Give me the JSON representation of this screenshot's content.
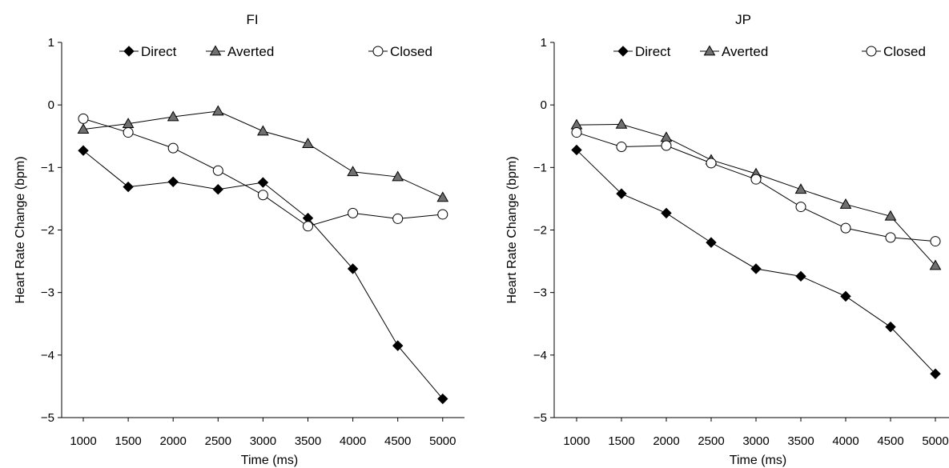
{
  "chart_data": [
    {
      "type": "line",
      "title": "FI",
      "xlabel": "Time (ms)",
      "ylabel": "Heart Rate Change (bpm)",
      "x": [
        1000,
        1500,
        2000,
        2500,
        3000,
        3500,
        4000,
        4500,
        5000
      ],
      "x_tick_labels": [
        "1000",
        "1500",
        "2000",
        "2500",
        "3000",
        "3500",
        "4000",
        "4500",
        "5000"
      ],
      "ylim": [
        -5,
        1
      ],
      "y_ticks": [
        1,
        0,
        -1,
        -2,
        -3,
        -4,
        -5
      ],
      "y_tick_labels": [
        "1",
        "0",
        "−1",
        "−2",
        "−3",
        "−4",
        "−5"
      ],
      "grid": false,
      "legend_position": "top",
      "series": [
        {
          "name": "Direct",
          "marker": "diamond",
          "fill": "#000000",
          "values": [
            -0.73,
            -1.31,
            -1.23,
            -1.35,
            -1.24,
            -1.81,
            -2.62,
            -3.85,
            -4.7
          ]
        },
        {
          "name": "Averted",
          "marker": "triangle",
          "fill": "#707070",
          "values": [
            -0.39,
            -0.3,
            -0.19,
            -0.1,
            -0.42,
            -0.62,
            -1.07,
            -1.15,
            -1.48
          ]
        },
        {
          "name": "Closed",
          "marker": "circle",
          "fill": "#ffffff",
          "values": [
            -0.22,
            -0.44,
            -0.69,
            -1.05,
            -1.44,
            -1.94,
            -1.73,
            -1.82,
            -1.75
          ]
        }
      ]
    },
    {
      "type": "line",
      "title": "JP",
      "xlabel": "Time (ms)",
      "ylabel": "Heart Rate Change (bpm)",
      "x": [
        1000,
        1500,
        2000,
        2500,
        3000,
        3500,
        4000,
        4500,
        5000
      ],
      "x_tick_labels": [
        "1000",
        "1500",
        "2000",
        "2500",
        "3000",
        "3500",
        "4000",
        "4500",
        "5000"
      ],
      "ylim": [
        -5,
        1
      ],
      "y_ticks": [
        1,
        0,
        -1,
        -2,
        -3,
        -4,
        -5
      ],
      "y_tick_labels": [
        "1",
        "0",
        "−1",
        "−2",
        "−3",
        "−4",
        "−5"
      ],
      "grid": false,
      "legend_position": "top",
      "series": [
        {
          "name": "Direct",
          "marker": "diamond",
          "fill": "#000000",
          "values": [
            -0.72,
            -1.42,
            -1.73,
            -2.2,
            -2.62,
            -2.74,
            -3.06,
            -3.55,
            -4.3
          ]
        },
        {
          "name": "Averted",
          "marker": "triangle",
          "fill": "#707070",
          "values": [
            -0.32,
            -0.31,
            -0.52,
            -0.88,
            -1.1,
            -1.35,
            -1.59,
            -1.78,
            -2.57
          ]
        },
        {
          "name": "Closed",
          "marker": "circle",
          "fill": "#ffffff",
          "values": [
            -0.44,
            -0.67,
            -0.65,
            -0.93,
            -1.19,
            -1.63,
            -1.97,
            -2.12,
            -2.18
          ]
        }
      ]
    }
  ]
}
